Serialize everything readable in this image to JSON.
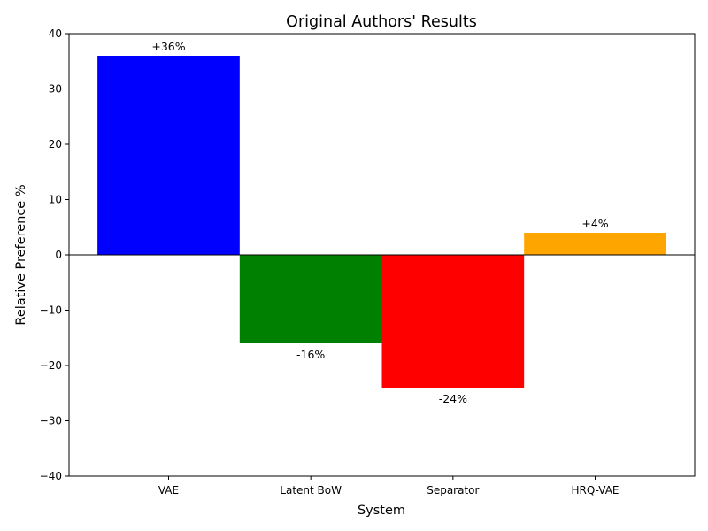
{
  "chart_data": {
    "type": "bar",
    "title": "Original Authors' Results",
    "xlabel": "System",
    "ylabel": "Relative Preference %",
    "categories": [
      "VAE",
      "Latent BoW",
      "Separator",
      "HRQ-VAE"
    ],
    "values": [
      36,
      -16,
      -24,
      4
    ],
    "data_labels": [
      "+36%",
      "-16%",
      "-24%",
      "+4%"
    ],
    "colors": [
      "#0000ff",
      "#008000",
      "#ff0000",
      "#ffa500"
    ],
    "ylim": [
      -40,
      40
    ],
    "yticks": [
      -40,
      -30,
      -20,
      -10,
      0,
      10,
      20,
      30,
      40
    ],
    "ytick_labels": [
      "−40",
      "−30",
      "−20",
      "−10",
      "0",
      "10",
      "20",
      "30",
      "40"
    ],
    "grid": false,
    "zero_line": true
  }
}
